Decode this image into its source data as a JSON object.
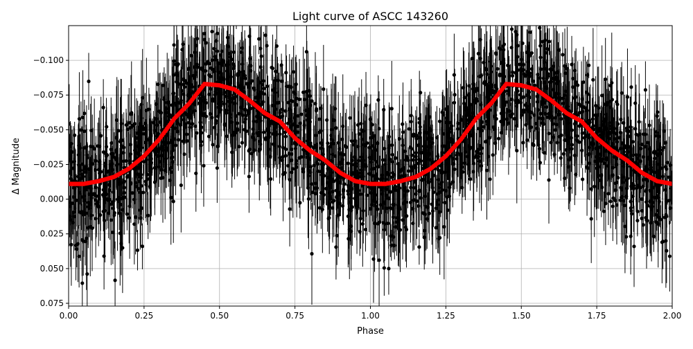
{
  "chart_data": {
    "type": "scatter",
    "title": "Light curve of ASCC 143260",
    "xlabel": "Phase",
    "ylabel": "Δ Magnitude",
    "xlim": [
      0.0,
      2.0
    ],
    "ylim": [
      0.077,
      -0.125
    ],
    "y_inverted": true,
    "grid": true,
    "x_ticks": [
      "0.00",
      "0.25",
      "0.50",
      "0.75",
      "1.00",
      "1.25",
      "1.50",
      "1.75",
      "2.00"
    ],
    "y_ticks": [
      "−0.100",
      "−0.075",
      "−0.050",
      "−0.025",
      "0.000",
      "0.025",
      "0.050",
      "0.075"
    ],
    "series": [
      {
        "kind": "observations with error bars",
        "color": "#000000",
        "description_note": "dense cloud of black points following the binned curve with scatter of roughly ±0.05 mag"
      },
      {
        "kind": "binned mean",
        "color": "#ff0000",
        "phase": [
          0.0,
          0.05,
          0.1,
          0.15,
          0.2,
          0.25,
          0.3,
          0.35,
          0.4,
          0.45,
          0.5,
          0.55,
          0.6,
          0.65,
          0.7,
          0.75,
          0.8,
          0.85,
          0.9,
          0.95,
          1.0,
          1.05,
          1.1,
          1.15,
          1.2,
          1.25,
          1.3,
          1.35,
          1.4,
          1.45,
          1.5,
          1.55,
          1.6,
          1.65,
          1.7,
          1.75,
          1.8,
          1.85,
          1.9,
          1.95,
          2.0
        ],
        "delta_mag": [
          -0.011,
          -0.011,
          -0.013,
          -0.016,
          -0.022,
          -0.031,
          -0.043,
          -0.058,
          -0.069,
          -0.083,
          -0.082,
          -0.079,
          -0.071,
          -0.062,
          -0.056,
          -0.044,
          -0.035,
          -0.028,
          -0.019,
          -0.013,
          -0.011,
          -0.011,
          -0.013,
          -0.016,
          -0.022,
          -0.031,
          -0.043,
          -0.058,
          -0.069,
          -0.083,
          -0.082,
          -0.079,
          -0.071,
          -0.062,
          -0.056,
          -0.044,
          -0.035,
          -0.028,
          -0.019,
          -0.013,
          -0.011
        ]
      }
    ]
  }
}
